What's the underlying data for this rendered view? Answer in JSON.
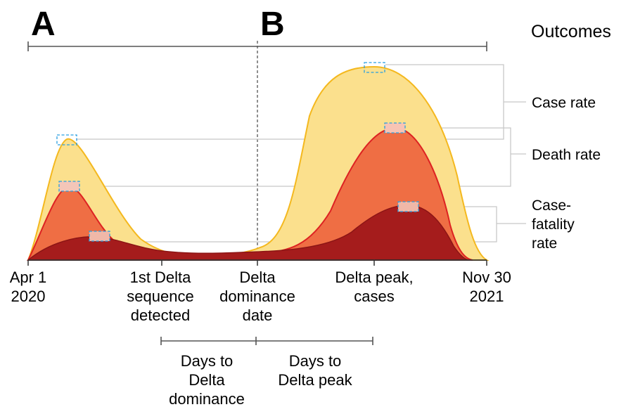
{
  "panels": {
    "a": "A",
    "b": "B"
  },
  "outcomes_title": "Outcomes",
  "legend": {
    "case_rate": "Case rate",
    "death_rate": "Death rate",
    "cfr_line1": "Case-",
    "cfr_line2": "fatality",
    "cfr_line3": "rate"
  },
  "x_labels": {
    "start_line1": "Apr 1",
    "start_line2": "2020",
    "first_seq_line1": "1st Delta",
    "first_seq_line2": "sequence",
    "first_seq_line3": "detected",
    "dominance_line1": "Delta",
    "dominance_line2": "dominance",
    "dominance_line3": "date",
    "peak_line1": "Delta peak,",
    "peak_line2": "cases",
    "end_line1": "Nov 30",
    "end_line2": "2021"
  },
  "intervals": {
    "to_dominance_line1": "Days to",
    "to_dominance_line2": "Delta",
    "to_dominance_line3": "dominance",
    "to_peak_line1": "Days to",
    "to_peak_line2": "Delta peak"
  },
  "colors": {
    "case_fill": "#fbe08d",
    "case_stroke": "#f4b81e",
    "death_fill": "#ef6e44",
    "death_stroke": "#dd2222",
    "cfr_fill": "#a51c1c",
    "marker_stroke": "#2a9fe0"
  }
}
